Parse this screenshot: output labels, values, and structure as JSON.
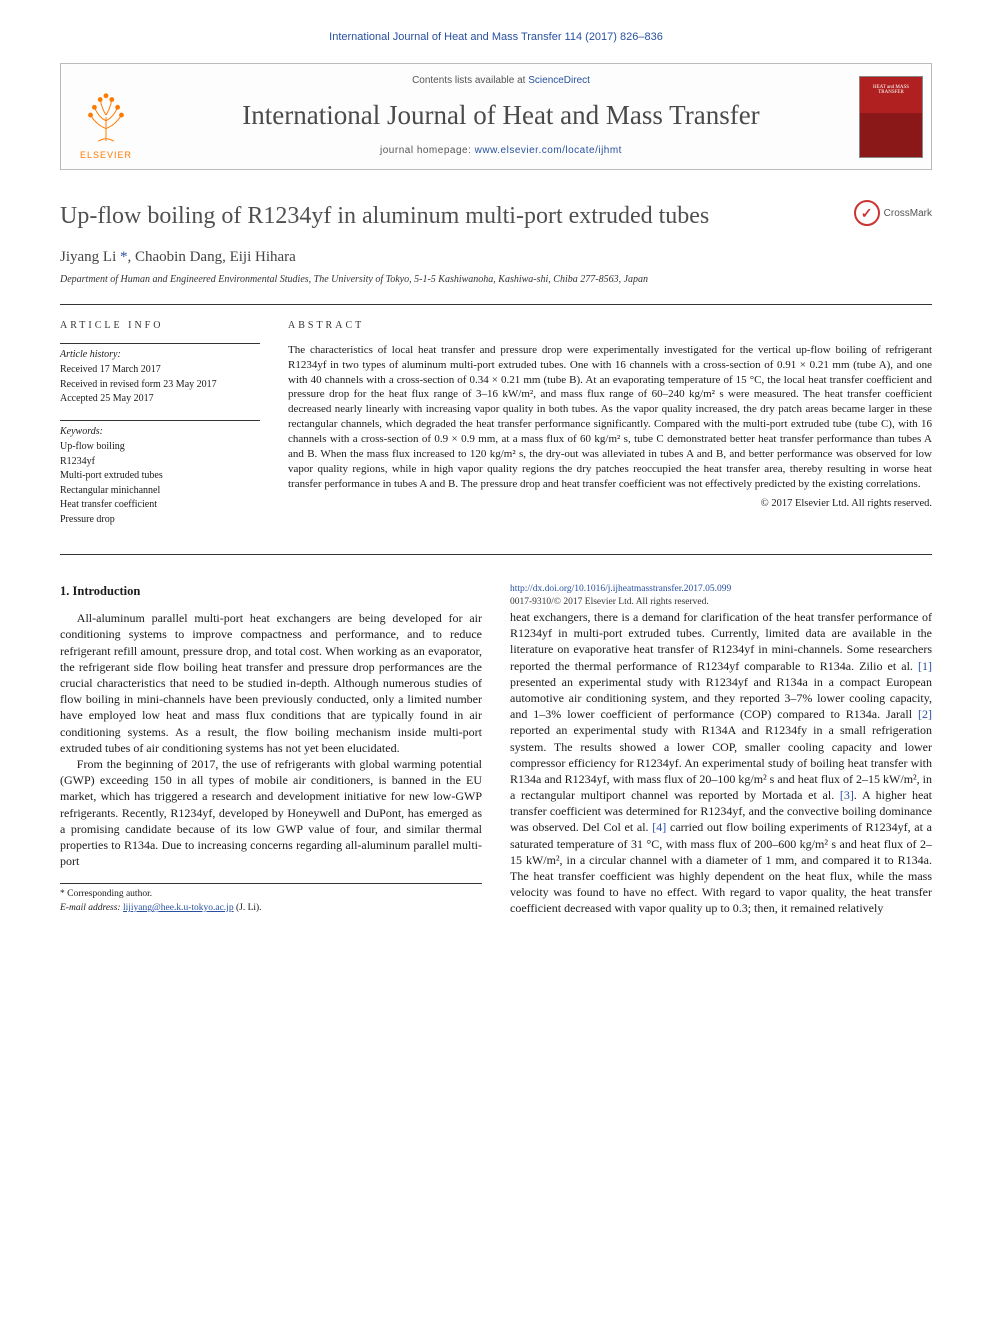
{
  "running_head": "International Journal of Heat and Mass Transfer 114 (2017) 826–836",
  "masthead": {
    "contents_prefix": "Contents lists available at ",
    "contents_link": "ScienceDirect",
    "journal": "International Journal of Heat and Mass Transfer",
    "homepage_prefix": "journal homepage: ",
    "homepage_url": "www.elsevier.com/locate/ijhmt",
    "publisher": "ELSEVIER",
    "cover_text": "HEAT and MASS TRANSFER"
  },
  "crossmark": "CrossMark",
  "title": "Up-flow boiling of R1234yf in aluminum multi-port extruded tubes",
  "authors_html": "Jiyang Li <span class='corr'>*</span>, Chaobin Dang, Eiji Hihara",
  "affiliation": "Department of Human and Engineered Environmental Studies, The University of Tokyo, 5-1-5 Kashiwanoha, Kashiwa-shi, Chiba 277-8563, Japan",
  "info": {
    "section_head": "ARTICLE INFO",
    "history_head": "Article history:",
    "history": [
      "Received 17 March 2017",
      "Received in revised form 23 May 2017",
      "Accepted 25 May 2017"
    ],
    "keywords_head": "Keywords:",
    "keywords": [
      "Up-flow boiling",
      "R1234yf",
      "Multi-port extruded tubes",
      "Rectangular minichannel",
      "Heat transfer coefficient",
      "Pressure drop"
    ]
  },
  "abstract": {
    "section_head": "ABSTRACT",
    "text": "The characteristics of local heat transfer and pressure drop were experimentally investigated for the vertical up-flow boiling of refrigerant R1234yf in two types of aluminum multi-port extruded tubes. One with 16 channels with a cross-section of 0.91 × 0.21 mm (tube A), and one with 40 channels with a cross-section of 0.34 × 0.21 mm (tube B). At an evaporating temperature of 15 °C, the local heat transfer coefficient and pressure drop for the heat flux range of 3–16 kW/m², and mass flux range of 60–240 kg/m² s were measured. The heat transfer coefficient decreased nearly linearly with increasing vapor quality in both tubes. As the vapor quality increased, the dry patch areas became larger in these rectangular channels, which degraded the heat transfer performance significantly. Compared with the multi-port extruded tube (tube C), with 16 channels with a cross-section of 0.9 × 0.9 mm, at a mass flux of 60 kg/m² s, tube C demonstrated better heat transfer performance than tubes A and B. When the mass flux increased to 120 kg/m² s, the dry-out was alleviated in tubes A and B, and better performance was observed for low vapor quality regions, while in high vapor quality regions the dry patches reoccupied the heat transfer area, thereby resulting in worse heat transfer performance in tubes A and B. The pressure drop and heat transfer coefficient was not effectively predicted by the existing correlations.",
    "copyright": "© 2017 Elsevier Ltd. All rights reserved."
  },
  "body": {
    "intro_head": "1. Introduction",
    "p1": "All-aluminum parallel multi-port heat exchangers are being developed for air conditioning systems to improve compactness and performance, and to reduce refrigerant refill amount, pressure drop, and total cost. When working as an evaporator, the refrigerant side flow boiling heat transfer and pressure drop performances are the crucial characteristics that need to be studied in-depth. Although numerous studies of flow boiling in mini-channels have been previously conducted, only a limited number have employed low heat and mass flux conditions that are typically found in air conditioning systems. As a result, the flow boiling mechanism inside multi-port extruded tubes of air conditioning systems has not yet been elucidated.",
    "p2": "From the beginning of 2017, the use of refrigerants with global warming potential (GWP) exceeding 150 in all types of mobile air conditioners, is banned in the EU market, which has triggered a research and development initiative for new low-GWP refrigerants. Recently, R1234yf, developed by Honeywell and DuPont, has emerged as a promising candidate because of its low GWP value of four, and similar thermal properties to R134a. Due to increasing concerns regarding all-aluminum parallel multi-port",
    "p3_html": "heat exchangers, there is a demand for clarification of the heat transfer performance of R1234yf in multi-port extruded tubes. Currently, limited data are available in the literature on evaporative heat transfer of R1234yf in mini-channels. Some researchers reported the thermal performance of R1234yf comparable to R134a. Zilio et al. <span class='ref'>[1]</span> presented an experimental study with R1234yf and R134a in a compact European automotive air conditioning system, and they reported 3–7% lower cooling capacity, and 1–3% lower coefficient of performance (COP) compared to R134a. Jarall <span class='ref'>[2]</span> reported an experimental study with R134A and R1234fy in a small refrigeration system. The results showed a lower COP, smaller cooling capacity and lower compressor efficiency for R1234yf. An experimental study of boiling heat transfer with R134a and R1234yf, with mass flux of 20–100 kg/m² s and heat flux of 2–15 kW/m², in a rectangular multiport channel was reported by Mortada et al. <span class='ref'>[3]</span>. A higher heat transfer coefficient was determined for R1234yf, and the convective boiling dominance was observed. Del Col et al. <span class='ref'>[4]</span> carried out flow boiling experiments of R1234yf, at a saturated temperature of 31 °C, with mass flux of 200–600 kg/m² s and heat flux of 2–15 kW/m², in a circular channel with a diameter of 1 mm, and compared it to R134a. The heat transfer coefficient was highly dependent on the heat flux, while the mass velocity was found to have no effect. With regard to vapor quality, the heat transfer coefficient decreased with vapor quality up to 0.3; then, it remained relatively"
  },
  "footnotes": {
    "corr": "* Corresponding author.",
    "email_label": "E-mail address: ",
    "email": "lijiyang@hee.k.u-tokyo.ac.jp",
    "email_who": " (J. Li)."
  },
  "footer": {
    "doi": "http://dx.doi.org/10.1016/j.ijheatmasstransfer.2017.05.099",
    "issn_line": "0017-9310/© 2017 Elsevier Ltd. All rights reserved."
  },
  "colors": {
    "link": "#2850a0",
    "elsevier": "#ff7a00",
    "cover_top": "#b02020",
    "cover_bot": "#8a1818",
    "crossmark": "#c33"
  }
}
